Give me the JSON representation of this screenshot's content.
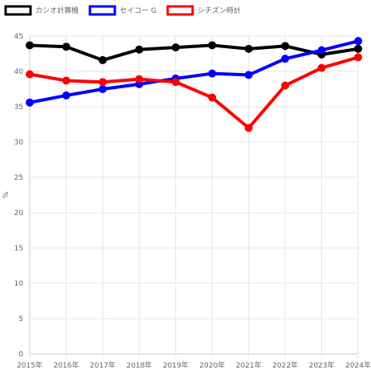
{
  "chart_data": {
    "type": "line",
    "ylabel": "%",
    "ylim": [
      0,
      45
    ],
    "y_ticks": [
      0,
      5,
      10,
      15,
      20,
      25,
      30,
      35,
      40,
      45
    ],
    "grid": true,
    "legend_position": "top-left",
    "categories": [
      "2015年",
      "2016年",
      "2017年",
      "2018年",
      "2019年",
      "2020年",
      "2021年",
      "2022年",
      "2023年",
      "2024年"
    ],
    "series": [
      {
        "name": "カシオ計算機",
        "color": "#000000",
        "values": [
          43.7,
          43.5,
          41.6,
          43.1,
          43.4,
          43.7,
          43.2,
          43.6,
          42.4,
          43.2
        ]
      },
      {
        "name": "セイコー G",
        "color": "#0000ff",
        "values": [
          35.6,
          36.6,
          37.5,
          38.2,
          39.0,
          39.7,
          39.5,
          41.8,
          43.0,
          44.3
        ]
      },
      {
        "name": "シチズン時計",
        "color": "#ff0000",
        "values": [
          39.6,
          38.7,
          38.5,
          38.9,
          38.5,
          36.3,
          32.0,
          38.0,
          40.5,
          42.0
        ]
      }
    ]
  }
}
